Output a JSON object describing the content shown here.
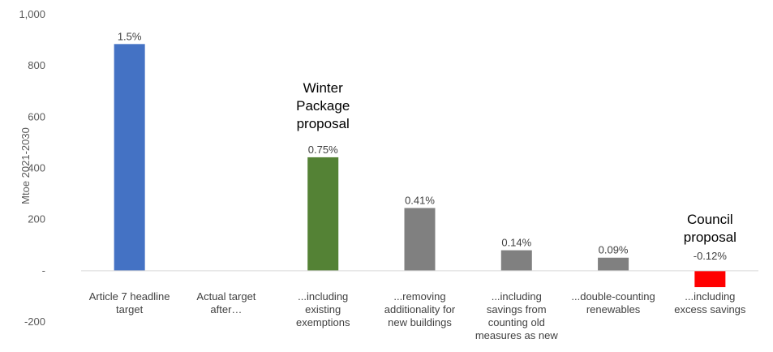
{
  "chart_data": {
    "type": "bar",
    "ylabel": "Mtoe 2021-2030",
    "ylim": [
      -200,
      1000
    ],
    "yticks": [
      {
        "value": 1000,
        "label": "1,000"
      },
      {
        "value": 800,
        "label": "800"
      },
      {
        "value": 600,
        "label": "600"
      },
      {
        "value": 400,
        "label": "400"
      },
      {
        "value": 200,
        "label": "200"
      },
      {
        "value": 0,
        "label": "-"
      },
      {
        "value": -200,
        "label": "-200"
      }
    ],
    "categories": [
      [
        "Article 7 headline",
        "target"
      ],
      [
        "Actual target",
        "after…"
      ],
      [
        "...including",
        "existing",
        "exemptions"
      ],
      [
        "...removing",
        "additionality for",
        "new buildings"
      ],
      [
        "...including",
        "savings from",
        "counting old",
        "measures as new"
      ],
      [
        "...double-counting",
        "renewables"
      ],
      [
        "...including",
        "excess savings"
      ]
    ],
    "values": [
      885,
      null,
      443,
      245,
      80,
      51,
      -64
    ],
    "data_labels": [
      "1.5%",
      "",
      "0.75%",
      "0.41%",
      "0.14%",
      "0.09%",
      "-0.12%"
    ],
    "colors": [
      "#4472C4",
      null,
      "#548235",
      "#808080",
      "#808080",
      "#808080",
      "#FF0000"
    ],
    "annotations": [
      {
        "category_index": 2,
        "lines": [
          "Winter",
          "Package",
          "proposal"
        ]
      },
      {
        "category_index": 6,
        "lines": [
          "Council",
          "proposal"
        ]
      }
    ],
    "grid": false,
    "legend": "none"
  }
}
